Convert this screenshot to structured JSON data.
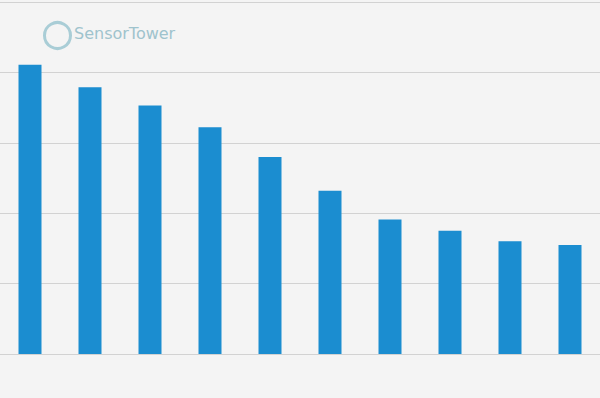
{
  "chart_data": {
    "type": "bar",
    "annotations": [
      "SensorTower"
    ],
    "categories": [
      null,
      null,
      null,
      null,
      null,
      null,
      null,
      null,
      null,
      null
    ],
    "values": [
      4.11,
      3.79,
      3.53,
      3.22,
      2.8,
      2.32,
      1.91,
      1.75,
      1.6,
      1.55
    ],
    "color": "#1b8dd0",
    "ylim": [
      0,
      5
    ],
    "yticks": [
      0,
      1,
      2,
      3,
      4,
      5
    ],
    "grid": true,
    "tick_labels": false
  }
}
